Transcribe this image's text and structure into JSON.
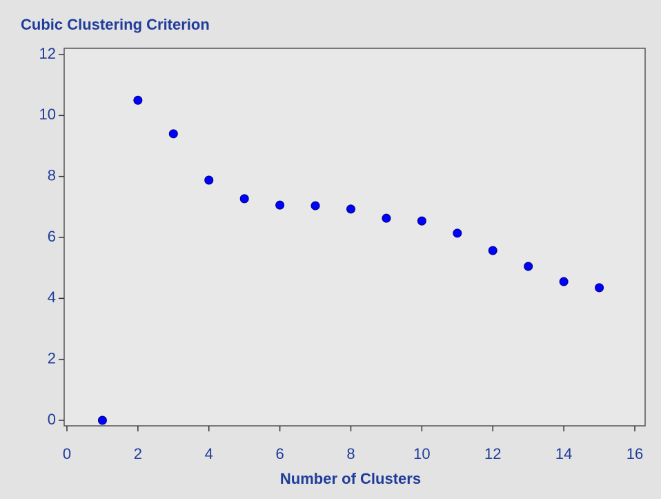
{
  "chart_data": {
    "type": "scatter",
    "title": "Cubic Clustering Criterion",
    "x_label": "Number of Clusters",
    "x": [
      1,
      2,
      3,
      4,
      5,
      6,
      7,
      8,
      9,
      10,
      11,
      12,
      13,
      14,
      15
    ],
    "values": [
      0,
      10.5,
      9.4,
      7.88,
      7.27,
      7.06,
      7.04,
      6.93,
      6.63,
      6.54,
      6.14,
      5.57,
      5.05,
      4.55,
      4.35
    ],
    "color": "#0000ff",
    "xlim": [
      0,
      16
    ],
    "xticks": [
      0,
      2,
      4,
      6,
      8,
      10,
      12,
      14,
      16
    ],
    "ylim": [
      0,
      12
    ],
    "yticks": [
      0,
      2,
      4,
      6,
      8,
      10,
      12
    ],
    "grid": false
  }
}
